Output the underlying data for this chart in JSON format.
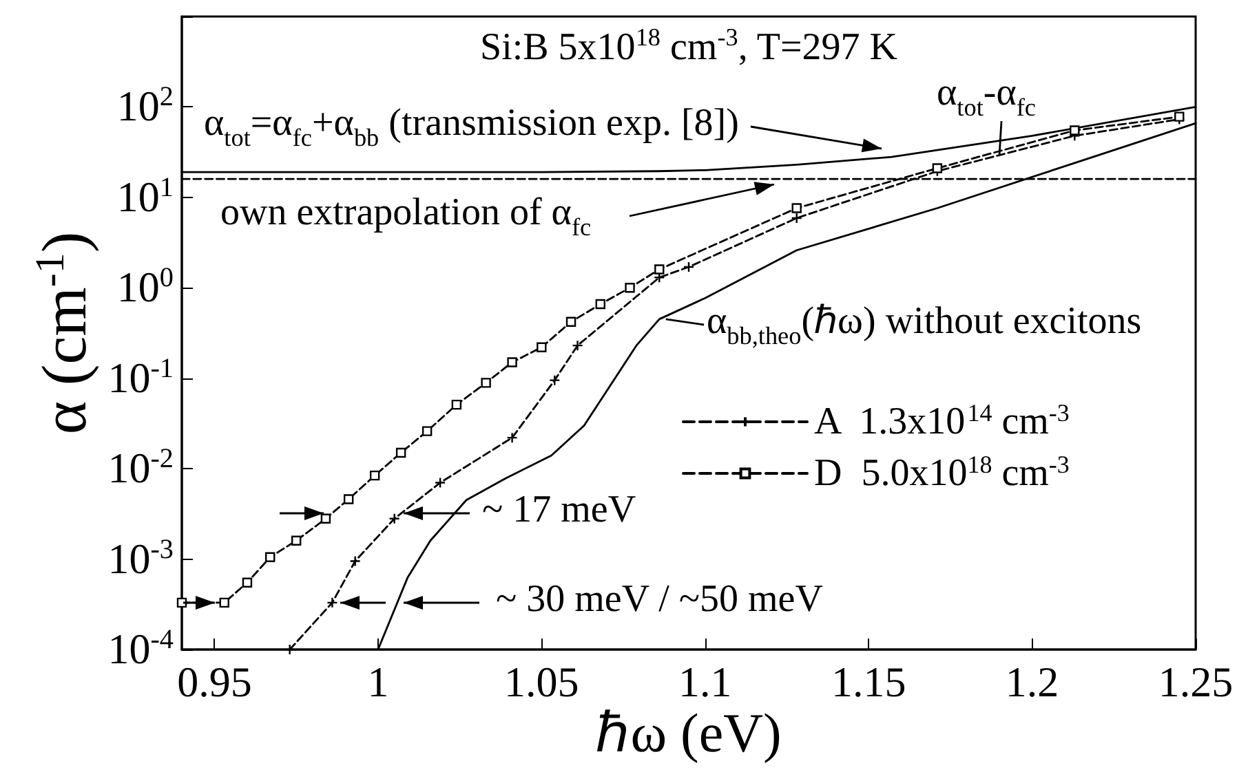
{
  "chart_data": {
    "type": "line",
    "title": "Si:B 5x10$^{18}$ cm$^{-3}$, T=297 K",
    "xlabel": "ℏω (eV)",
    "ylabel": "α (cm$^{-1}$)",
    "log": "y",
    "grid": false,
    "legend": "right",
    "xlim": [
      0.94,
      1.25
    ],
    "xticks": [
      0.95,
      1,
      1.05,
      1.1,
      1.15,
      1.2,
      1.25
    ],
    "ylim": [
      0.0001,
      1000
    ],
    "yticks": [
      {
        "value": 0.0001,
        "label": "10$^{-4}$"
      },
      {
        "value": 0.001,
        "label": "10$^{-3}$"
      },
      {
        "value": 0.01,
        "label": "10$^{-2}$"
      },
      {
        "value": 0.1,
        "label": "10$^{-1}$"
      },
      {
        "value": 1,
        "label": "10$^{0}$"
      },
      {
        "value": 10,
        "label": "10$^{1}$"
      },
      {
        "value": 100,
        "label": "10$^{2}$"
      },
      {
        "value": 1000,
        "label": null
      }
    ],
    "series": [
      {
        "color": "#000000",
        "line_style": "solid",
        "marker": "none",
        "x": [
          0.94,
          1.0,
          1.05,
          1.086,
          1.1,
          1.128,
          1.157,
          1.2,
          1.25
        ],
        "values": [
          19,
          19,
          19,
          19.5,
          20,
          23,
          28,
          48,
          100
        ]
      },
      {
        "color": "#000000",
        "line_style": "dashed",
        "marker": "none",
        "x": [
          0.94,
          1.25
        ],
        "values": [
          16,
          16
        ]
      },
      {
        "color": "#000000",
        "line_style": "solid",
        "marker": "none",
        "x": [
          1.0,
          1.009,
          1.016,
          1.027,
          1.039,
          1.053,
          1.063,
          1.079,
          1.086,
          1.1,
          1.128,
          1.171,
          1.213,
          1.25
        ],
        "values": [
          0.0001,
          0.00062,
          0.0016,
          0.0045,
          0.0078,
          0.014,
          0.03,
          0.23,
          0.45,
          0.77,
          2.6,
          7.6,
          24,
          66
        ]
      },
      {
        "name": "A  1.3x10$^{14}$ cm$^{-3}$",
        "color": "#000000",
        "line_style": "dashed",
        "marker": "cross",
        "x": [
          0.973,
          0.986,
          0.993,
          1.005,
          1.019,
          1.041,
          1.054,
          1.061,
          1.086,
          1.095,
          1.128,
          1.171,
          1.213,
          1.245
        ],
        "values": [
          0.0001,
          0.00033,
          0.00095,
          0.0028,
          0.007,
          0.022,
          0.095,
          0.23,
          1.3,
          1.7,
          5.9,
          19.5,
          48,
          73
        ]
      },
      {
        "name": "D  5.0x10$^{18}$ cm$^{-3}$",
        "color": "#000000",
        "line_style": "dashed",
        "marker": "square",
        "x": [
          0.94,
          0.953,
          0.96,
          0.967,
          0.975,
          0.984,
          0.991,
          0.999,
          1.007,
          1.015,
          1.024,
          1.033,
          1.041,
          1.05,
          1.059,
          1.068,
          1.077,
          1.086,
          1.128,
          1.171,
          1.213,
          1.245
        ],
        "values": [
          0.00033,
          0.00033,
          0.00055,
          0.00105,
          0.0016,
          0.0028,
          0.0046,
          0.0084,
          0.015,
          0.026,
          0.051,
          0.089,
          0.15,
          0.22,
          0.42,
          0.66,
          1.0,
          1.6,
          7.6,
          21,
          55,
          78
        ]
      }
    ],
    "annotations": [
      "α$_{tot}$=α$_{fc}$+α$_{bb}$ (transmission exp. [8])",
      "own extrapolation of α$_{fc}$",
      {
        "text": "α$_{tot}$-α$_{fc}$",
        "x": 1.19,
        "y": 30
      },
      {
        "text": "α$_{bb,theo}$(ℏω) without excitons",
        "x": 1.088,
        "y": 0.45
      },
      "~ 17 meV",
      "~ 30 meV / ~50 meV"
    ]
  }
}
